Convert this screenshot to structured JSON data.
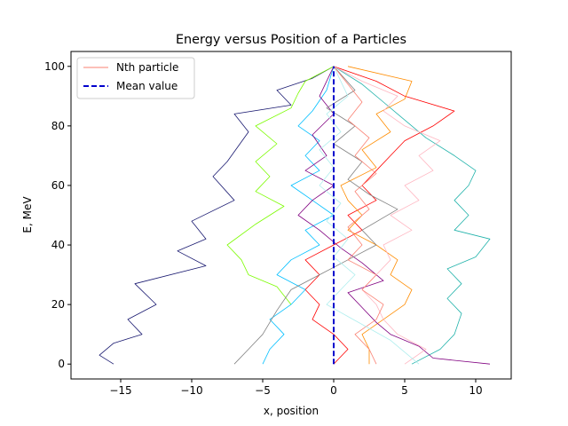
{
  "chart_data": {
    "type": "line",
    "title": "Energy versus Position of a Particles",
    "xlabel": "x, position",
    "ylabel": "E, MeV",
    "xlim": [
      -18.5,
      12.5
    ],
    "ylim": [
      -5,
      105
    ],
    "xticks": [
      -15,
      -10,
      -5,
      0,
      5,
      10
    ],
    "yticks": [
      0,
      20,
      40,
      60,
      80,
      100
    ],
    "xtick_labels": [
      "−15",
      "−10",
      "−5",
      "0",
      "5",
      "10"
    ],
    "ytick_labels": [
      "0",
      "20",
      "40",
      "60",
      "80",
      "100"
    ],
    "legend": {
      "position": "upper-left",
      "entries": [
        {
          "label": "Nth particle",
          "color": "#fa8072",
          "style": "solid"
        },
        {
          "label": "Mean value",
          "color": "#0000cd",
          "style": "dashed"
        }
      ]
    },
    "mean_line": {
      "x": 0,
      "y_range": [
        0,
        100
      ],
      "color": "#0000cd"
    },
    "series": [
      {
        "name": "particle-navy",
        "color": "#191970",
        "points": [
          [
            -15.5,
            0
          ],
          [
            -16.5,
            3
          ],
          [
            -15.5,
            7
          ],
          [
            -13.5,
            10
          ],
          [
            -14.5,
            15
          ],
          [
            -12.5,
            20
          ],
          [
            -14,
            27
          ],
          [
            -9,
            33
          ],
          [
            -11,
            38
          ],
          [
            -9,
            42
          ],
          [
            -10,
            48
          ],
          [
            -7,
            55
          ],
          [
            -8.5,
            63
          ],
          [
            -7.5,
            68
          ],
          [
            -6,
            78
          ],
          [
            -7,
            84
          ],
          [
            -3,
            87
          ],
          [
            -4,
            92
          ],
          [
            -1.5,
            96
          ],
          [
            0,
            100
          ]
        ]
      },
      {
        "name": "particle-lime",
        "color": "#7cfc00",
        "points": [
          [
            -3,
            20
          ],
          [
            -4,
            26
          ],
          [
            -6,
            30
          ],
          [
            -6.5,
            35
          ],
          [
            -7.5,
            40
          ],
          [
            -5.5,
            47
          ],
          [
            -3.5,
            53
          ],
          [
            -5.5,
            58
          ],
          [
            -4.5,
            63
          ],
          [
            -5.5,
            68
          ],
          [
            -4,
            74
          ],
          [
            -5.5,
            80
          ],
          [
            -3,
            86
          ],
          [
            -2.5,
            91
          ],
          [
            -2,
            95
          ],
          [
            0,
            100
          ]
        ]
      },
      {
        "name": "particle-teal",
        "color": "#20b2aa",
        "points": [
          [
            5.5,
            0
          ],
          [
            7.5,
            5
          ],
          [
            8.5,
            10
          ],
          [
            9,
            17
          ],
          [
            8,
            22
          ],
          [
            9,
            27
          ],
          [
            8,
            32
          ],
          [
            10,
            36
          ],
          [
            11,
            42
          ],
          [
            8.5,
            45
          ],
          [
            9.5,
            50
          ],
          [
            8.5,
            55
          ],
          [
            9.5,
            60
          ],
          [
            10,
            65
          ],
          [
            8.5,
            70
          ],
          [
            6.5,
            76
          ],
          [
            5,
            82
          ],
          [
            3.5,
            88
          ],
          [
            2,
            94
          ],
          [
            0,
            100
          ]
        ]
      },
      {
        "name": "particle-red",
        "color": "#ff0000",
        "points": [
          [
            0,
            0
          ],
          [
            1,
            5
          ],
          [
            0,
            10
          ],
          [
            -1.5,
            15
          ],
          [
            -1,
            20
          ],
          [
            -2,
            25
          ],
          [
            -1,
            30
          ],
          [
            -2,
            35
          ],
          [
            0,
            40
          ],
          [
            2,
            45
          ],
          [
            1,
            50
          ],
          [
            3,
            55
          ],
          [
            2,
            60
          ],
          [
            3,
            65
          ],
          [
            4,
            70
          ],
          [
            5,
            75
          ],
          [
            7,
            80
          ],
          [
            8.5,
            85
          ],
          [
            5,
            90
          ],
          [
            3,
            95
          ],
          [
            0,
            100
          ]
        ]
      },
      {
        "name": "particle-orange",
        "color": "#ff8c00",
        "points": [
          [
            2.5,
            0
          ],
          [
            2.5,
            5
          ],
          [
            2,
            10
          ],
          [
            3.5,
            15
          ],
          [
            5,
            20
          ],
          [
            5.5,
            25
          ],
          [
            4,
            30
          ],
          [
            4.5,
            35
          ],
          [
            3,
            40
          ],
          [
            1,
            45
          ],
          [
            2,
            50
          ],
          [
            1,
            55
          ],
          [
            0.5,
            60
          ],
          [
            3,
            66
          ],
          [
            2,
            72
          ],
          [
            4,
            78
          ],
          [
            3,
            84
          ],
          [
            5,
            89
          ],
          [
            5.5,
            95
          ],
          [
            1,
            100
          ]
        ]
      },
      {
        "name": "particle-deepskyblue",
        "color": "#00bfff",
        "points": [
          [
            -5,
            0
          ],
          [
            -4.5,
            5
          ],
          [
            -3.5,
            10
          ],
          [
            -4.5,
            15
          ],
          [
            -3,
            20
          ],
          [
            -2,
            25
          ],
          [
            -4,
            30
          ],
          [
            -3,
            35
          ],
          [
            -1,
            40
          ],
          [
            -2,
            45
          ],
          [
            0,
            50
          ],
          [
            -1.5,
            55
          ],
          [
            -3,
            60
          ],
          [
            -1,
            65
          ],
          [
            -2,
            70
          ],
          [
            -1,
            75
          ],
          [
            -2.5,
            80
          ],
          [
            -1.5,
            85
          ],
          [
            -0.5,
            92
          ],
          [
            0,
            100
          ]
        ]
      },
      {
        "name": "particle-purple",
        "color": "#800080",
        "points": [
          [
            11,
            0
          ],
          [
            7,
            2
          ],
          [
            6,
            6
          ],
          [
            4,
            10
          ],
          [
            3,
            14
          ],
          [
            2,
            19
          ],
          [
            1,
            24
          ],
          [
            3.5,
            28
          ],
          [
            2,
            34
          ],
          [
            0.5,
            39
          ],
          [
            -1,
            45
          ],
          [
            -2.5,
            50
          ],
          [
            -1.5,
            55
          ],
          [
            0,
            60
          ],
          [
            -2,
            65
          ],
          [
            -0.5,
            70
          ],
          [
            -1.5,
            77
          ],
          [
            0,
            84
          ],
          [
            -1,
            90
          ],
          [
            0,
            100
          ]
        ]
      },
      {
        "name": "particle-pink",
        "color": "#ffb6c1",
        "points": [
          [
            5,
            0
          ],
          [
            6.5,
            5
          ],
          [
            4.5,
            10
          ],
          [
            3.5,
            15
          ],
          [
            3,
            20
          ],
          [
            2,
            25
          ],
          [
            3,
            30
          ],
          [
            4,
            35
          ],
          [
            3.5,
            40
          ],
          [
            5.5,
            45
          ],
          [
            4,
            50
          ],
          [
            6,
            55
          ],
          [
            5,
            60
          ],
          [
            7,
            65
          ],
          [
            6,
            70
          ],
          [
            7.5,
            75
          ],
          [
            5,
            80
          ],
          [
            3.5,
            85
          ],
          [
            4.5,
            90
          ],
          [
            2,
            95
          ],
          [
            0,
            100
          ]
        ]
      },
      {
        "name": "particle-gray",
        "color": "#808080",
        "points": [
          [
            -7,
            0
          ],
          [
            -6,
            5
          ],
          [
            -5,
            10
          ],
          [
            -4,
            18
          ],
          [
            -3,
            25
          ],
          [
            -1,
            30
          ],
          [
            1,
            35
          ],
          [
            3,
            40
          ],
          [
            2,
            45
          ],
          [
            4.5,
            52
          ],
          [
            2.5,
            57
          ],
          [
            1,
            62
          ],
          [
            2,
            68
          ],
          [
            0,
            74
          ],
          [
            1.5,
            80
          ],
          [
            -0.5,
            86
          ],
          [
            1.5,
            92
          ],
          [
            0,
            100
          ]
        ]
      },
      {
        "name": "particle-salmon",
        "color": "#fa8072",
        "points": [
          [
            3,
            0
          ],
          [
            2.5,
            5
          ],
          [
            1.5,
            10
          ],
          [
            3,
            15
          ],
          [
            3.5,
            20
          ],
          [
            2,
            25
          ],
          [
            3,
            30
          ],
          [
            1,
            35
          ],
          [
            2,
            40
          ],
          [
            1,
            46
          ],
          [
            2.5,
            52
          ],
          [
            1.5,
            58
          ],
          [
            3,
            64
          ],
          [
            1.5,
            70
          ],
          [
            2.5,
            76
          ],
          [
            1,
            82
          ],
          [
            2,
            88
          ],
          [
            1,
            94
          ],
          [
            0,
            100
          ]
        ]
      },
      {
        "name": "particle-paleturquoise",
        "color": "#afeeee",
        "points": [
          [
            6,
            0
          ],
          [
            5,
            4
          ],
          [
            4,
            8
          ],
          [
            2.5,
            12
          ],
          [
            1,
            16
          ],
          [
            -0.5,
            20
          ],
          [
            0.5,
            25
          ],
          [
            1.5,
            30
          ],
          [
            0,
            36
          ],
          [
            1,
            42
          ],
          [
            -0.5,
            48
          ],
          [
            0.5,
            54
          ],
          [
            -1,
            60
          ],
          [
            0,
            66
          ],
          [
            -1,
            72
          ],
          [
            0.5,
            78
          ],
          [
            -0.5,
            84
          ],
          [
            1,
            90
          ],
          [
            0,
            100
          ]
        ]
      }
    ]
  }
}
